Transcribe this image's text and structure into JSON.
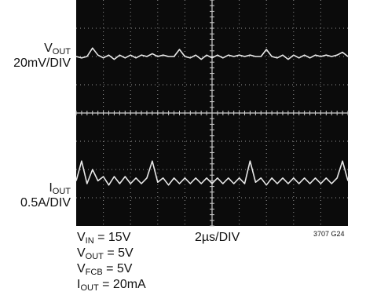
{
  "chart_data": {
    "type": "line",
    "title": "",
    "grid": {
      "major_x": 10,
      "major_y": 8,
      "minor_per_div": 5
    },
    "channels": [
      {
        "name": "VOUT",
        "label_main": "V",
        "label_sub": "OUT",
        "scale": "20mV/DIV",
        "trace": "vout"
      },
      {
        "name": "IOUT",
        "label_main": "I",
        "label_sub": "OUT",
        "scale": "0.5A/DIV",
        "trace": "iout"
      }
    ],
    "timebase": "2µs/DIV",
    "conditions": [
      {
        "main": "V",
        "sub": "IN",
        "rest": " = 15V"
      },
      {
        "main": "V",
        "sub": "OUT",
        "rest": " = 5V"
      },
      {
        "main": "V",
        "sub": "FCB",
        "rest": " = 5V"
      },
      {
        "main": "I",
        "sub": "OUT",
        "rest": " = 20mA"
      }
    ],
    "figure_code": "3707 G24",
    "x": [
      0,
      0.2,
      0.4,
      0.6,
      0.8,
      1.0,
      1.2,
      1.4,
      1.6,
      1.8,
      2.0,
      2.2,
      2.4,
      2.6,
      2.8,
      3.0,
      3.2,
      3.4,
      3.6,
      3.8,
      4.0,
      4.2,
      4.4,
      4.6,
      4.8,
      5.0,
      5.2,
      5.4,
      5.6,
      5.8,
      6.0,
      6.2,
      6.4,
      6.6,
      6.8,
      7.0,
      7.2,
      7.4,
      7.6,
      7.8,
      8.0,
      8.2,
      8.4,
      8.6,
      8.8,
      9.0,
      9.2,
      9.4,
      9.6,
      9.8,
      10.0
    ],
    "series": [
      {
        "id": "vout",
        "values": [
          2.0,
          1.95,
          2.0,
          2.3,
          2.05,
          1.95,
          2.05,
          1.9,
          2.05,
          1.95,
          2.05,
          1.95,
          2.05,
          2.0,
          2.1,
          2.0,
          2.05,
          2.0,
          2.0,
          2.25,
          2.0,
          1.95,
          2.05,
          1.9,
          2.05,
          1.95,
          2.05,
          1.95,
          2.05,
          2.0,
          2.05,
          2.0,
          2.05,
          2.0,
          2.0,
          2.25,
          2.0,
          1.95,
          2.05,
          1.9,
          2.05,
          1.95,
          2.05,
          1.95,
          2.05,
          2.0,
          2.05,
          2.0,
          2.05,
          2.15,
          2.0
        ]
      },
      {
        "id": "iout",
        "values": [
          -2.4,
          -1.7,
          -2.5,
          -2.0,
          -2.4,
          -2.25,
          -2.55,
          -2.25,
          -2.5,
          -2.25,
          -2.5,
          -2.3,
          -2.5,
          -2.3,
          -1.7,
          -2.45,
          -2.3,
          -2.55,
          -2.3,
          -2.5,
          -2.3,
          -2.5,
          -2.3,
          -2.5,
          -2.3,
          -2.5,
          -2.3,
          -2.5,
          -2.3,
          -2.5,
          -2.3,
          -2.5,
          -1.7,
          -2.45,
          -2.3,
          -2.55,
          -2.3,
          -2.5,
          -2.3,
          -2.5,
          -2.3,
          -2.5,
          -2.3,
          -2.5,
          -2.3,
          -2.5,
          -2.3,
          -2.5,
          -2.3,
          -1.7,
          -2.4
        ]
      }
    ],
    "ylim": [
      -4,
      4
    ],
    "xlim": [
      0,
      10
    ],
    "colors": {
      "screen": "#0b0b0b",
      "trace": "#e8e8e8",
      "grid": "#cfcfcf"
    }
  }
}
